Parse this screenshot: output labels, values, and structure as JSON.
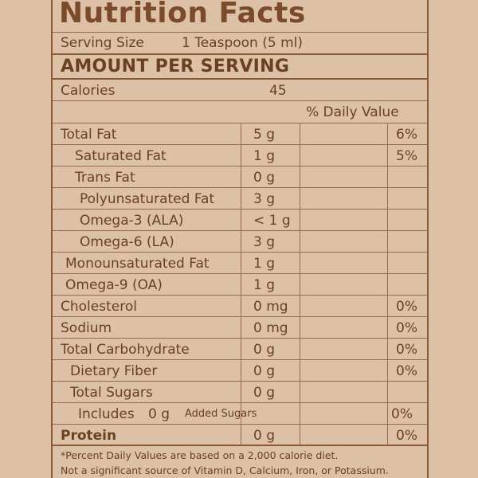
{
  "title": "Nutrition Facts",
  "serving": {
    "label": "Serving Size",
    "value": "1 Teaspoon (5 ml)"
  },
  "amount_header": "AMOUNT PER SERVING",
  "calories": {
    "label": "Calories",
    "value": "45"
  },
  "daily_value_header": "% Daily Value",
  "rows": [
    {
      "label": "Total Fat",
      "amount": "5 g",
      "dv": "6%"
    },
    {
      "label": "Saturated Fat",
      "amount": "1 g",
      "dv": "5%"
    },
    {
      "label": "Trans Fat",
      "amount": "0 g",
      "dv": ""
    },
    {
      "label": "Polyunsaturated Fat",
      "amount": "3 g",
      "dv": ""
    },
    {
      "label": "Omega-3 (ALA)",
      "amount": "< 1 g",
      "dv": ""
    },
    {
      "label": "Omega-6 (LA)",
      "amount": "3 g",
      "dv": ""
    },
    {
      "label": "Monounsaturated Fat",
      "amount": "1 g",
      "dv": ""
    },
    {
      "label": "Omega-9 (OA)",
      "amount": "1 g",
      "dv": ""
    },
    {
      "label": "Cholesterol",
      "amount": "0 mg",
      "dv": "0%"
    },
    {
      "label": "Sodium",
      "amount": "0 mg",
      "dv": "0%"
    },
    {
      "label": "Total Carbohydrate",
      "amount": "0 g",
      "dv": "0%"
    },
    {
      "label": "Dietary Fiber",
      "amount": "0 g",
      "dv": "0%"
    },
    {
      "label": "Total Sugars",
      "amount": "0 g",
      "dv": ""
    },
    {
      "label": "Includes",
      "amount": "0 g",
      "suffix": "Added Sugars",
      "dv": "0%"
    },
    {
      "label": "Protein",
      "amount": "0 g",
      "dv": "0%"
    }
  ],
  "footnotes": [
    "*Percent Daily Values are based on a 2,000 calorie diet.",
    "Not a significant source of Vitamin D, Calcium, Iron, or Potassium."
  ]
}
